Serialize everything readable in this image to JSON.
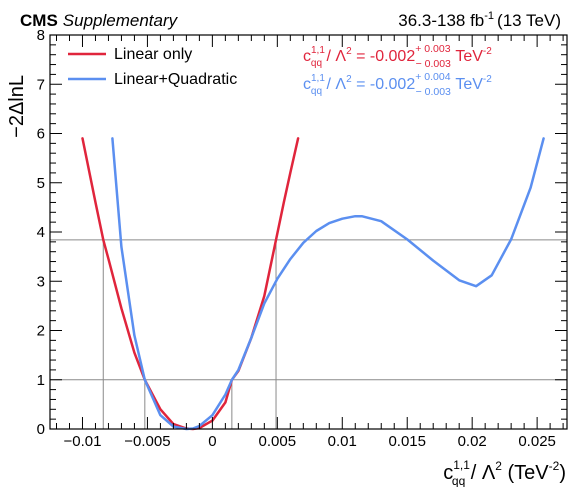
{
  "header": {
    "experiment": "CMS",
    "tag": "Supplementary",
    "lumi_main": "36.3-138 fb",
    "lumi_exp": "-1",
    "lumi_energy": "(13 TeV)"
  },
  "axes": {
    "ylabel": "−2ΔlnL",
    "xlabel_c": "c",
    "xlabel_sup": "1,1",
    "xlabel_sub": "qq",
    "xlabel_mid": " / Λ",
    "xlabel_sq": "2",
    "xlabel_unit_open": " (TeV",
    "xlabel_unit_exp": "-2",
    "xlabel_unit_close": ")"
  },
  "legend": [
    {
      "label": "Linear only",
      "color": "#e0253c"
    },
    {
      "label": "Linear+Quadratic",
      "color": "#5b8ff0"
    }
  ],
  "results": [
    {
      "c": "c",
      "sup": "1,1",
      "sub": "qq",
      "mid": " / Λ",
      "sq": "2",
      "eq": " = -0.002",
      "up": "+ 0.003",
      "down": "− 0.003",
      "unit": " TeV",
      "unit_exp": "-2",
      "color": "#e0253c"
    },
    {
      "c": "c",
      "sup": "1,1",
      "sub": "qq",
      "mid": " / Λ",
      "sq": "2",
      "eq": " = -0.002",
      "up": "+ 0.004",
      "down": "− 0.003",
      "unit": " TeV",
      "unit_exp": "-2",
      "color": "#5b8ff0"
    }
  ],
  "chart_data": {
    "type": "line",
    "xlabel": "c_qq^{1,1} / Λ^2 (TeV^-2)",
    "ylabel": "−2ΔlnL",
    "xlim": [
      -0.0125,
      0.0273
    ],
    "ylim": [
      0,
      8
    ],
    "x_ticks": [
      -0.01,
      -0.005,
      0,
      0.005,
      0.01,
      0.015,
      0.02,
      0.025
    ],
    "x_tick_labels": [
      "−0.01",
      "−0.005",
      "0",
      "0.005",
      "0.01",
      "0.015",
      "0.02",
      "0.025"
    ],
    "y_ticks": [
      0,
      1,
      2,
      3,
      4,
      5,
      6,
      7,
      8
    ],
    "y_tick_labels": [
      "0",
      "1",
      "2",
      "3",
      "4",
      "5",
      "6",
      "7",
      "8"
    ],
    "reference_lines": [
      1,
      3.84
    ],
    "interval_markers": [
      {
        "x": -0.0084,
        "y": 3.84
      },
      {
        "x": -0.0052,
        "y": 1.0
      },
      {
        "x": 0.0015,
        "y": 1.0
      },
      {
        "x": 0.0049,
        "y": 3.84
      }
    ],
    "series": [
      {
        "name": "Linear only",
        "color": "#e0253c",
        "x": [
          -0.01,
          -0.009,
          -0.0084,
          -0.008,
          -0.007,
          -0.006,
          -0.0052,
          -0.004,
          -0.003,
          -0.002,
          -0.0015,
          -0.001,
          0.0,
          0.001,
          0.0015,
          0.002,
          0.003,
          0.004,
          0.0049,
          0.0055,
          0.006,
          0.0066
        ],
        "y": [
          5.9,
          4.6,
          3.84,
          3.45,
          2.45,
          1.55,
          1.0,
          0.4,
          0.1,
          0.01,
          0.0,
          0.02,
          0.17,
          0.54,
          1.0,
          1.18,
          1.85,
          2.7,
          3.84,
          4.6,
          5.2,
          5.9
        ]
      },
      {
        "name": "Linear+Quadratic",
        "color": "#5b8ff0",
        "x": [
          -0.0077,
          -0.007,
          -0.006,
          -0.0052,
          -0.004,
          -0.003,
          -0.002,
          -0.0015,
          -0.001,
          0.0,
          0.001,
          0.0015,
          0.002,
          0.003,
          0.004,
          0.005,
          0.006,
          0.007,
          0.008,
          0.009,
          0.01,
          0.011,
          0.0115,
          0.013,
          0.015,
          0.017,
          0.019,
          0.0203,
          0.0215,
          0.023,
          0.0245,
          0.0255
        ],
        "y": [
          5.9,
          3.7,
          1.9,
          1.0,
          0.28,
          0.05,
          0.0,
          0.01,
          0.06,
          0.28,
          0.7,
          1.0,
          1.2,
          1.85,
          2.55,
          3.05,
          3.45,
          3.78,
          4.02,
          4.18,
          4.27,
          4.32,
          4.32,
          4.22,
          3.85,
          3.42,
          3.02,
          2.9,
          3.12,
          3.85,
          4.9,
          5.9
        ]
      }
    ]
  }
}
